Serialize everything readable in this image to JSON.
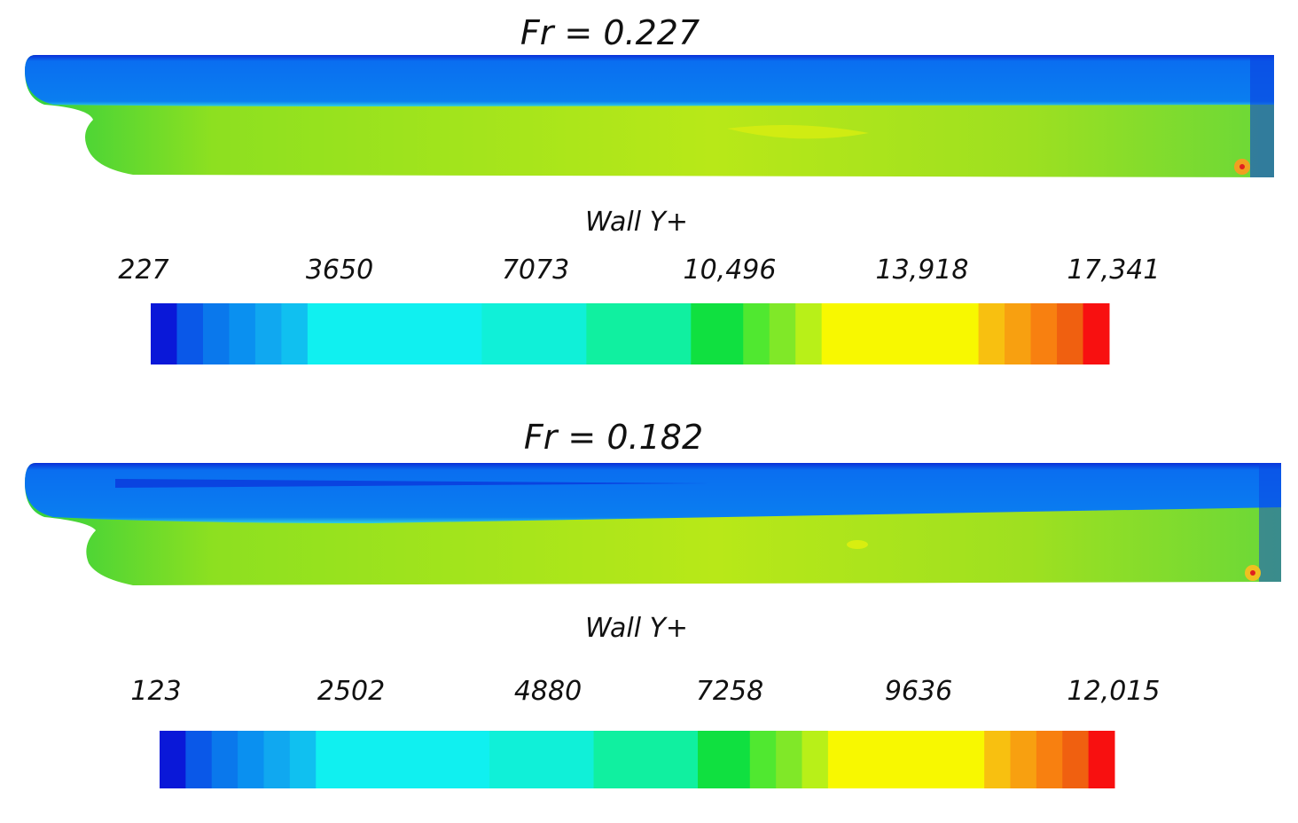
{
  "panels": [
    {
      "title": "Fr = 0.227",
      "legend_title": "Wall Y+",
      "ticks": [
        "227",
        "3650",
        "7073",
        "10,496",
        "13,918",
        "17,341"
      ]
    },
    {
      "title": "Fr = 0.182",
      "legend_title": "Wall Y+",
      "ticks": [
        "123",
        "2502",
        "4880",
        "7258",
        "9636",
        "12,015"
      ]
    }
  ]
}
